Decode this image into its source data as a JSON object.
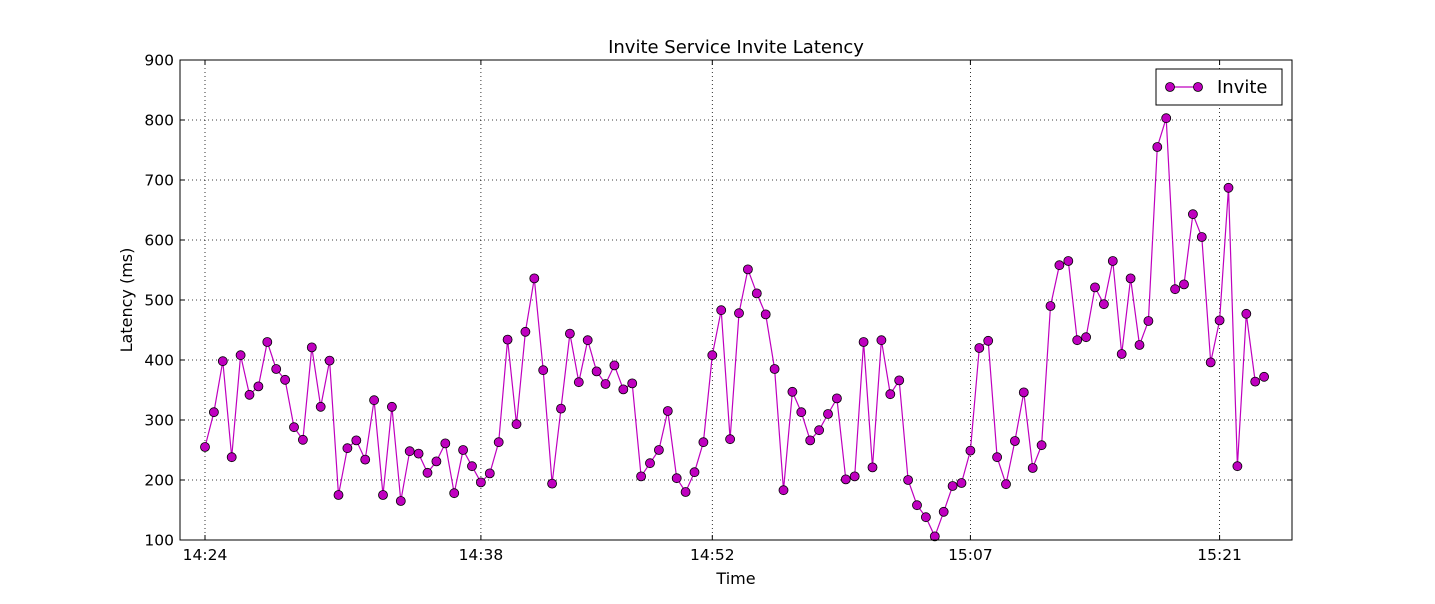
{
  "chart_data": {
    "type": "line",
    "title": "Invite Service Invite Latency",
    "xlabel": "Time",
    "ylabel": "Latency (ms)",
    "ylim": [
      100,
      900
    ],
    "yticks": [
      "100",
      "200",
      "300",
      "400",
      "500",
      "600",
      "700",
      "800",
      "900"
    ],
    "xticks": [
      {
        "label": "14:24",
        "index": 0
      },
      {
        "label": "14:38",
        "index": 31
      },
      {
        "label": "14:52",
        "index": 57
      },
      {
        "label": "15:07",
        "index": 86
      },
      {
        "label": "15:21",
        "index": 114
      }
    ],
    "grid": true,
    "legend_position": "top-right",
    "colors": {
      "series": "#bf00bf",
      "marker_edge": "#000000"
    },
    "series": [
      {
        "name": "Invite",
        "values": [
          255,
          313,
          398,
          238,
          408,
          342,
          356,
          430,
          385,
          367,
          288,
          267,
          421,
          322,
          399,
          175,
          253,
          266,
          234,
          333,
          175,
          322,
          165,
          248,
          244,
          212,
          231,
          261,
          178,
          250,
          223,
          196,
          211,
          263,
          434,
          293,
          447,
          536,
          383,
          194,
          319,
          444,
          363,
          433,
          381,
          360,
          391,
          351,
          361,
          206,
          228,
          250,
          315,
          203,
          180,
          213,
          263,
          408,
          483,
          268,
          478,
          551,
          511,
          476,
          385,
          183,
          347,
          313,
          266,
          283,
          310,
          336,
          201,
          206,
          430,
          221,
          433,
          343,
          366,
          200,
          158,
          138,
          106,
          147,
          190,
          195,
          249,
          420,
          432,
          238,
          193,
          265,
          346,
          220,
          258,
          490,
          558,
          565,
          433,
          438,
          521,
          493,
          565,
          410,
          536,
          425,
          465,
          755,
          803,
          518,
          526,
          643,
          605,
          396,
          466,
          687,
          223,
          477,
          364,
          372
        ]
      }
    ]
  }
}
